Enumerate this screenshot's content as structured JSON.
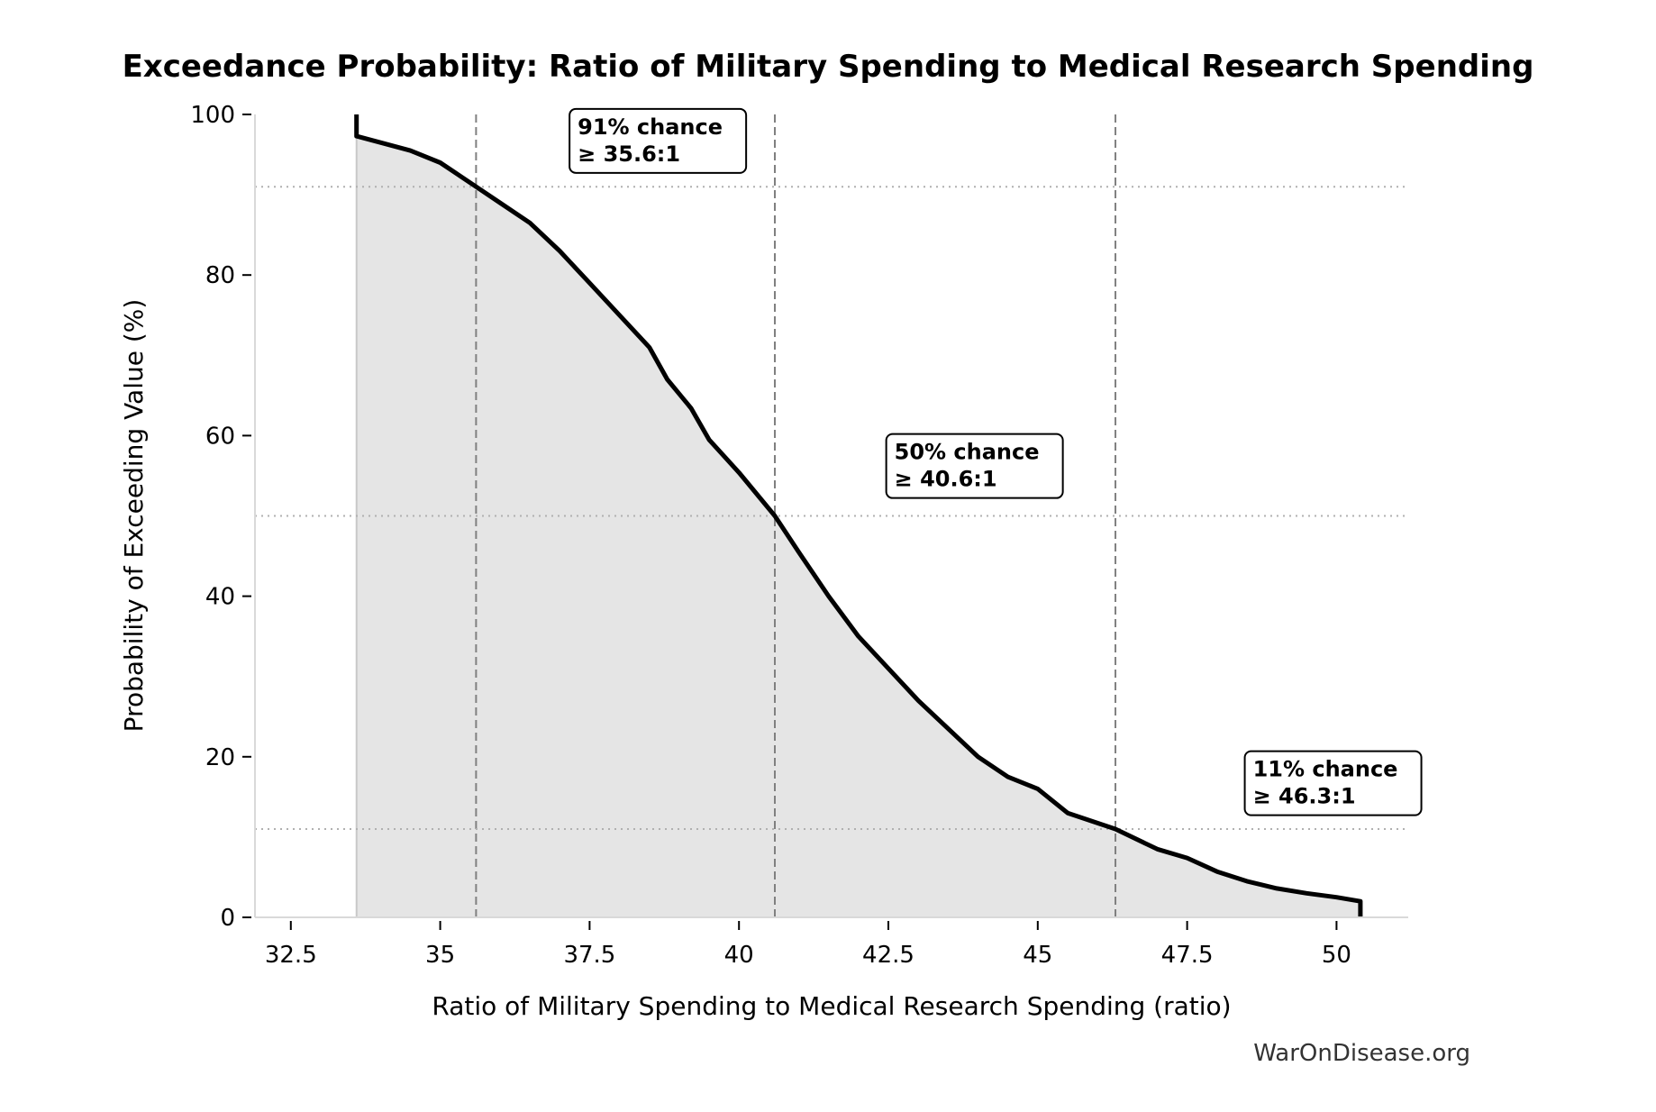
{
  "chart_data": {
    "type": "area",
    "title": "Exceedance Probability: Ratio of Military Spending to Medical Research Spending",
    "xlabel": "Ratio of Military Spending to Medical Research Spending (ratio)",
    "ylabel": "Probability of Exceeding Value (%)",
    "xlim": [
      31.9,
      51.2
    ],
    "ylim": [
      0,
      100
    ],
    "xticks": [
      32.5,
      35,
      37.5,
      40,
      42.5,
      45,
      47.5,
      50
    ],
    "xtick_labels": [
      "32.5",
      "35",
      "37.5",
      "40",
      "42.5",
      "45",
      "47.5",
      "50"
    ],
    "yticks": [
      0,
      20,
      40,
      60,
      80,
      100
    ],
    "ytick_labels": [
      "0",
      "20",
      "40",
      "60",
      "80",
      "100"
    ],
    "grid": false,
    "series": [
      {
        "x": [
          33.6,
          33.6,
          34.0,
          34.5,
          35.0,
          35.3,
          35.6,
          36.0,
          36.5,
          37.0,
          37.5,
          38.0,
          38.5,
          38.8,
          39.2,
          39.5,
          40.0,
          40.6,
          41.0,
          41.5,
          42.0,
          42.5,
          43.0,
          43.5,
          44.0,
          44.5,
          45.0,
          45.5,
          46.3,
          47.0,
          47.5,
          48.0,
          48.5,
          49.0,
          49.5,
          50.0,
          50.4,
          50.4
        ],
        "y": [
          100,
          97.3,
          96.5,
          95.5,
          94.0,
          92.5,
          91.0,
          89.0,
          86.5,
          83.0,
          79.0,
          75.0,
          71.0,
          67.0,
          63.4,
          59.5,
          55.4,
          50.0,
          45.5,
          40.0,
          35.0,
          31.0,
          27.0,
          23.5,
          20.0,
          17.5,
          16.0,
          13.0,
          11.0,
          8.5,
          7.4,
          5.7,
          4.5,
          3.6,
          3.0,
          2.5,
          2.0,
          0
        ]
      }
    ],
    "colors": {
      "line": "#000000",
      "fill": "#e5e5e5",
      "reference": "#808080"
    },
    "reference_lines": [
      {
        "x": 35.6,
        "y": 91,
        "label_line1": "91% chance",
        "label_line2": "≥ 35.6:1",
        "label_x": 37.3,
        "label_y": 98
      },
      {
        "x": 40.6,
        "y": 50,
        "label_line1": "50% chance",
        "label_line2": "≥ 40.6:1",
        "label_x": 42.6,
        "label_y": 57.5
      },
      {
        "x": 46.3,
        "y": 11,
        "label_line1": "11% chance",
        "label_line2": "≥ 46.3:1",
        "label_x": 48.6,
        "label_y": 18
      }
    ]
  },
  "watermark": "WarOnDisease.org"
}
